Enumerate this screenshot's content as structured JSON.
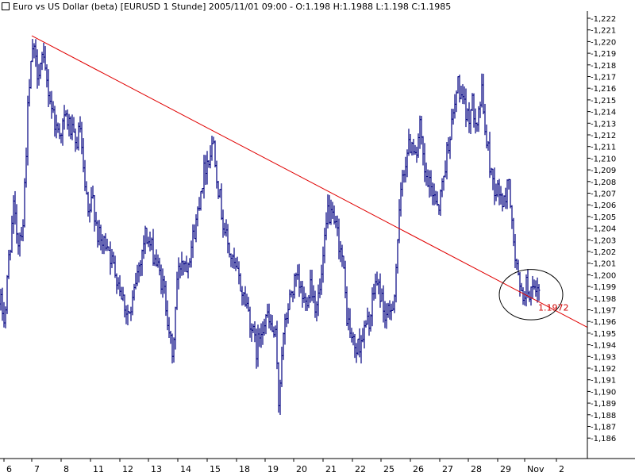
{
  "title": "Euro vs US Dollar (beta) [EURUSD  1 Stunde] 2005/11/01 09:00 - O:1.198 H:1.1988 L:1.198 C:1.1985",
  "icons": {
    "title_icon": "chart-window-icon"
  },
  "colors": {
    "price_bars": "#000080",
    "trendline": "#e00000",
    "annotation_text": "#d00000",
    "axis": "#000000",
    "background": "#ffffff"
  },
  "chart_data": {
    "type": "bar",
    "title": "Euro vs US Dollar (beta) [EURUSD  1 Stunde] 2005/11/01 09:00 - O:1.198 H:1.1988 L:1.198 C:1.1985",
    "xlabel": "",
    "ylabel": "",
    "ylim": [
      1.1856,
      1.2225
    ],
    "y_ticks": [
      "1,222",
      "1,221",
      "1,220",
      "1,219",
      "1,218",
      "1,217",
      "1,216",
      "1,215",
      "1,214",
      "1,213",
      "1,212",
      "1,211",
      "1,210",
      "1,209",
      "1,208",
      "1,207",
      "1,206",
      "1,205",
      "1,204",
      "1,203",
      "1,202",
      "1,201",
      "1,200",
      "1,199",
      "1,198",
      "1,197",
      "1,196",
      "1,195",
      "1,194",
      "1,193",
      "1,192",
      "1,191",
      "1,190",
      "1,189",
      "1,188",
      "1,187",
      "1,186"
    ],
    "x_ticks": [
      "6",
      "7",
      "8",
      "11",
      "12",
      "13",
      "14",
      "15",
      "18",
      "19",
      "20",
      "21",
      "22",
      "25",
      "26",
      "27",
      "28",
      "29",
      "Nov",
      "2"
    ],
    "grid": false,
    "series": [
      {
        "type": "ohlc-bars",
        "timeframe": "1 hour",
        "path": [
          [
            0,
            1.1975
          ],
          [
            5,
            1.196
          ],
          [
            10,
            1.2015
          ],
          [
            16,
            1.2055
          ],
          [
            22,
            1.203
          ],
          [
            28,
            1.2045
          ],
          [
            34,
            1.214
          ],
          [
            40,
            1.2195
          ],
          [
            46,
            1.2175
          ],
          [
            52,
            1.2185
          ],
          [
            58,
            1.2165
          ],
          [
            64,
            1.2145
          ],
          [
            70,
            1.2125
          ],
          [
            76,
            1.2125
          ],
          [
            82,
            1.2135
          ],
          [
            88,
            1.2125
          ],
          [
            94,
            1.211
          ],
          [
            100,
            1.2125
          ],
          [
            104,
            1.2085
          ],
          [
            110,
            1.205
          ],
          [
            116,
            1.2065
          ],
          [
            122,
            1.2035
          ],
          [
            128,
            1.2025
          ],
          [
            134,
            1.203
          ],
          [
            140,
            1.201
          ],
          [
            146,
            1.2
          ],
          [
            152,
            1.1985
          ],
          [
            158,
            1.197
          ],
          [
            164,
            1.1965
          ],
          [
            170,
            1.1995
          ],
          [
            176,
            1.2015
          ],
          [
            182,
            1.2035
          ],
          [
            188,
            1.2025
          ],
          [
            194,
            1.2015
          ],
          [
            200,
            1.2
          ],
          [
            206,
            1.1985
          ],
          [
            212,
            1.1955
          ],
          [
            216,
            1.1925
          ],
          [
            222,
            1.1995
          ],
          [
            228,
            1.2015
          ],
          [
            234,
            1.201
          ],
          [
            240,
            1.2025
          ],
          [
            246,
            1.2045
          ],
          [
            252,
            1.2075
          ],
          [
            258,
            1.2095
          ],
          [
            264,
            1.2105
          ],
          [
            268,
            1.2115
          ],
          [
            274,
            1.2075
          ],
          [
            280,
            1.2045
          ],
          [
            286,
            1.2025
          ],
          [
            292,
            1.201
          ],
          [
            298,
            1.2
          ],
          [
            304,
            1.1985
          ],
          [
            310,
            1.1975
          ],
          [
            316,
            1.1955
          ],
          [
            322,
            1.1935
          ],
          [
            328,
            1.1955
          ],
          [
            334,
            1.1965
          ],
          [
            340,
            1.1955
          ],
          [
            346,
            1.1945
          ],
          [
            350,
            1.189
          ],
          [
            354,
            1.1935
          ],
          [
            360,
            1.1965
          ],
          [
            366,
            1.1985
          ],
          [
            372,
            1.1995
          ],
          [
            378,
            1.1985
          ],
          [
            384,
            1.1975
          ],
          [
            390,
            1.1995
          ],
          [
            396,
            1.1975
          ],
          [
            402,
            1.1985
          ],
          [
            408,
            1.2025
          ],
          [
            412,
            1.2055
          ],
          [
            418,
            1.2045
          ],
          [
            424,
            1.2035
          ],
          [
            430,
            1.2015
          ],
          [
            436,
            1.1965
          ],
          [
            442,
            1.1945
          ],
          [
            448,
            1.1935
          ],
          [
            454,
            1.1945
          ],
          [
            460,
            1.1955
          ],
          [
            466,
            1.1965
          ],
          [
            472,
            1.1995
          ],
          [
            478,
            1.1985
          ],
          [
            484,
            1.1965
          ],
          [
            490,
            1.1965
          ],
          [
            496,
            1.1985
          ],
          [
            500,
            1.203
          ],
          [
            506,
            1.2085
          ],
          [
            512,
            1.2105
          ],
          [
            518,
            1.2115
          ],
          [
            524,
            1.2105
          ],
          [
            528,
            1.2125
          ],
          [
            534,
            1.2085
          ],
          [
            540,
            1.2075
          ],
          [
            546,
            1.207
          ],
          [
            552,
            1.206
          ],
          [
            558,
            1.2085
          ],
          [
            564,
            1.2115
          ],
          [
            570,
            1.2135
          ],
          [
            576,
            1.2165
          ],
          [
            582,
            1.2145
          ],
          [
            588,
            1.2135
          ],
          [
            594,
            1.2145
          ],
          [
            600,
            1.2135
          ],
          [
            606,
            1.2155
          ],
          [
            610,
            1.2125
          ],
          [
            616,
            1.2095
          ],
          [
            622,
            1.2075
          ],
          [
            628,
            1.207
          ],
          [
            634,
            1.206
          ],
          [
            640,
            1.2085
          ],
          [
            644,
            1.204
          ],
          [
            648,
            1.2015
          ],
          [
            652,
            1.1995
          ],
          [
            656,
            1.198
          ],
          [
            662,
            1.199
          ],
          [
            668,
            1.1985
          ],
          [
            674,
            1.198
          ],
          [
            678,
            1.1985
          ]
        ]
      },
      {
        "type": "trendline",
        "points": [
          [
            40,
            1.2205
          ],
          [
            740,
            1.1955
          ]
        ]
      }
    ],
    "annotations": [
      {
        "text": "1.1972",
        "x": 678,
        "y": 1.1972
      }
    ],
    "highlight_circle": {
      "cx": 669,
      "cy": 1.1983,
      "rx": 40,
      "ry": 0.0012
    }
  }
}
